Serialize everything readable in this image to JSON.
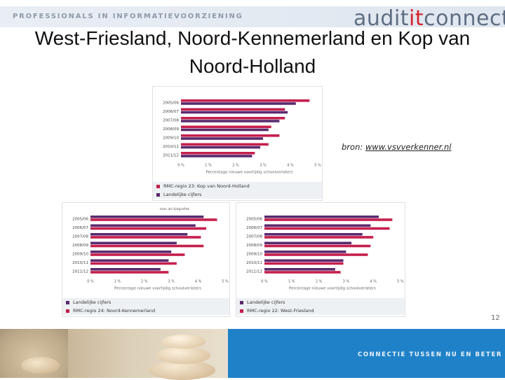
{
  "header": {
    "tagline": "PROFESSIONALS IN INFORMATIEVOORZIENING",
    "brand_pre": "audit",
    "brand_hl": "it",
    "brand_post": "connect"
  },
  "title": "West-Friesland, Noord-Kennemerland en Kop van Noord-Holland",
  "source_label": "bron:",
  "source_link": "www.vsvverkenner.nl",
  "page_number": "12",
  "footer_text": "CONNECTIE TUSSEN NU EN BETER",
  "colors": {
    "series_region": "#c51f4d",
    "series_national": "#5a2a6e",
    "footer_bar": "#1f82c8"
  },
  "chart_data": [
    {
      "type": "bar",
      "orientation": "horizontal",
      "categories": [
        "2005/06",
        "2006/07",
        "2007/08",
        "2008/09",
        "2009/10",
        "2010/11",
        "2011/12"
      ],
      "series": [
        {
          "name": "RMC-regio 23: Kop van Noord-Holland",
          "values": [
            4.7,
            3.8,
            3.8,
            3.3,
            3.6,
            3.2,
            2.7
          ]
        },
        {
          "name": "Landelijke cijfers",
          "values": [
            4.2,
            3.9,
            3.6,
            3.2,
            3.0,
            2.9,
            2.6
          ]
        }
      ],
      "xticks": [
        "0 %",
        "1 %",
        "2 %",
        "3 %",
        "4 %",
        "5 %"
      ],
      "xlim": [
        0,
        5
      ],
      "xlabel": "Percentage nieuwe voortijdig schoolverlaters",
      "legend": [
        "RMC-regio 23: Kop van Noord-Holland",
        "Landelijke cijfers"
      ],
      "legend_placement": "bottom"
    },
    {
      "type": "bar",
      "orientation": "horizontal",
      "categories": [
        "2005/06",
        "2006/07",
        "2007/08",
        "2008/09",
        "2009/10",
        "2010/11",
        "2011/12"
      ],
      "series": [
        {
          "name": "Landelijke cijfers",
          "values": [
            4.2,
            3.9,
            3.6,
            3.2,
            3.0,
            2.9,
            2.6
          ]
        },
        {
          "name": "RMC-regio 24: Noord-Kennemerland",
          "values": [
            4.7,
            4.3,
            4.1,
            4.2,
            3.5,
            3.2,
            2.9
          ]
        }
      ],
      "xticks": [
        "0 %",
        "1 %",
        "2 %",
        "3 %",
        "4 %",
        "5 %"
      ],
      "xlim": [
        0,
        5
      ],
      "xlabel": "Percentage nieuwe voortijdig schoolverlaters",
      "legend": [
        "Landelijke cijfers",
        "RMC-regio 24: Noord-Kennemerland"
      ],
      "legend_placement": "bottom",
      "note": "toon als tijdgrafiek"
    },
    {
      "type": "bar",
      "orientation": "horizontal",
      "categories": [
        "2005/06",
        "2006/07",
        "2007/08",
        "2008/09",
        "2009/10",
        "2010/11",
        "2011/12"
      ],
      "series": [
        {
          "name": "Landelijke cijfers",
          "values": [
            4.2,
            3.9,
            3.6,
            3.2,
            3.0,
            2.9,
            2.6
          ]
        },
        {
          "name": "RMC-regio 22: West-Friesland",
          "values": [
            4.7,
            4.6,
            4.0,
            3.9,
            3.8,
            2.9,
            2.8
          ]
        }
      ],
      "xticks": [
        "0 %",
        "1 %",
        "2 %",
        "3 %",
        "4 %",
        "5 %"
      ],
      "xlim": [
        0,
        5
      ],
      "xlabel": "Percentage nieuwe voortijdig schoolverlaters",
      "legend": [
        "Landelijke cijfers",
        "RMC-regio 22: West-Friesland"
      ],
      "legend_placement": "bottom"
    }
  ]
}
